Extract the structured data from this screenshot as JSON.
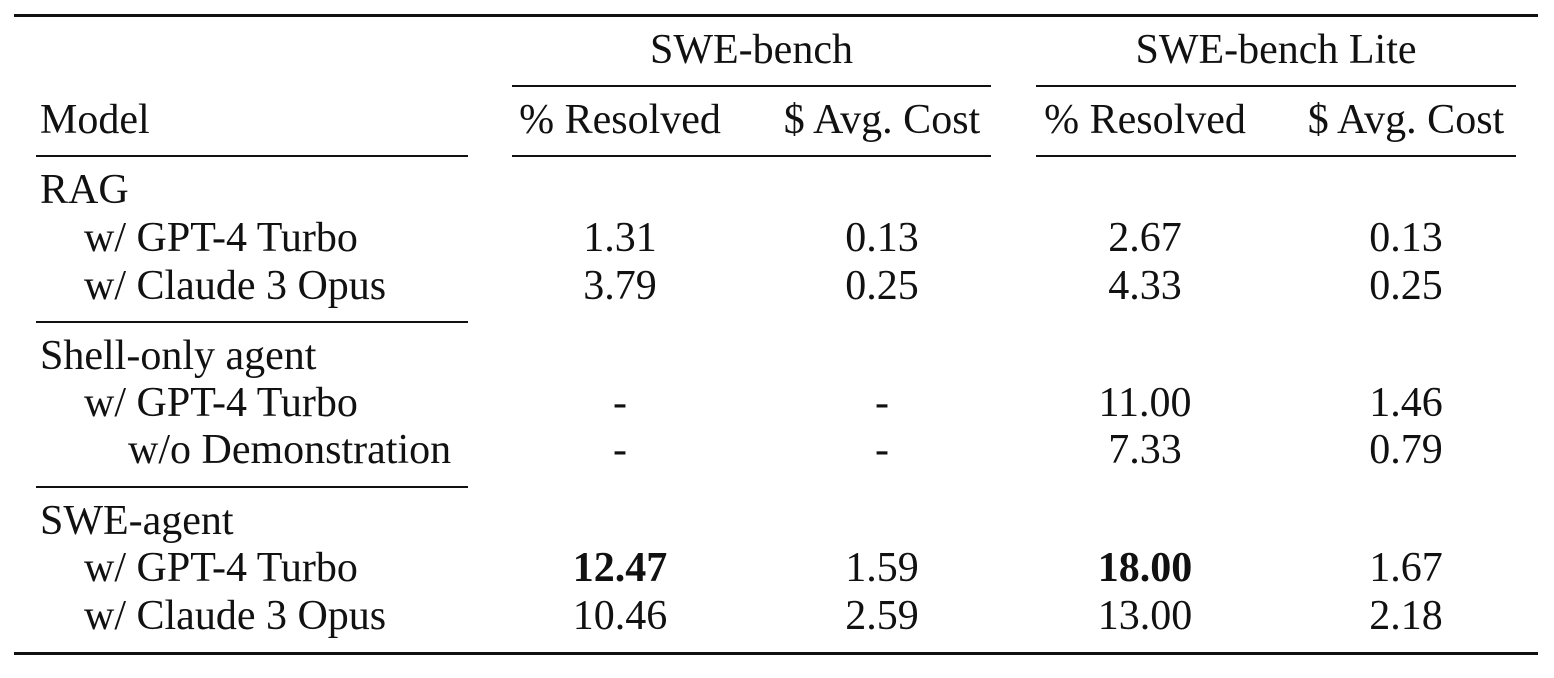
{
  "header": {
    "model_label": "Model",
    "groups": [
      {
        "label": "SWE-bench",
        "col_resolved": "% Resolved",
        "col_cost": "$ Avg. Cost"
      },
      {
        "label": "SWE-bench Lite",
        "col_resolved": "% Resolved",
        "col_cost": "$ Avg. Cost"
      }
    ]
  },
  "sections": [
    {
      "name": "RAG",
      "rows": [
        {
          "model": "w/ GPT-4 Turbo",
          "swe_resolved": "1.31",
          "swe_cost": "0.13",
          "lite_resolved": "2.67",
          "lite_cost": "0.13"
        },
        {
          "model": "w/ Claude 3 Opus",
          "swe_resolved": "3.79",
          "swe_cost": "0.25",
          "lite_resolved": "4.33",
          "lite_cost": "0.25"
        }
      ]
    },
    {
      "name": "Shell-only agent",
      "rows": [
        {
          "model": "w/ GPT-4 Turbo",
          "swe_resolved": "-",
          "swe_cost": "-",
          "lite_resolved": "11.00",
          "lite_cost": "1.46"
        },
        {
          "model": "w/o Demonstration",
          "swe_resolved": "-",
          "swe_cost": "-",
          "lite_resolved": "7.33",
          "lite_cost": "0.79"
        }
      ]
    },
    {
      "name": "SWE-agent",
      "rows": [
        {
          "model": "w/ GPT-4 Turbo",
          "swe_resolved": "12.47",
          "swe_cost": "1.59",
          "lite_resolved": "18.00",
          "lite_cost": "1.67"
        },
        {
          "model": "w/ Claude 3 Opus",
          "swe_resolved": "10.46",
          "swe_cost": "2.59",
          "lite_resolved": "13.00",
          "lite_cost": "2.18"
        }
      ]
    }
  ]
}
